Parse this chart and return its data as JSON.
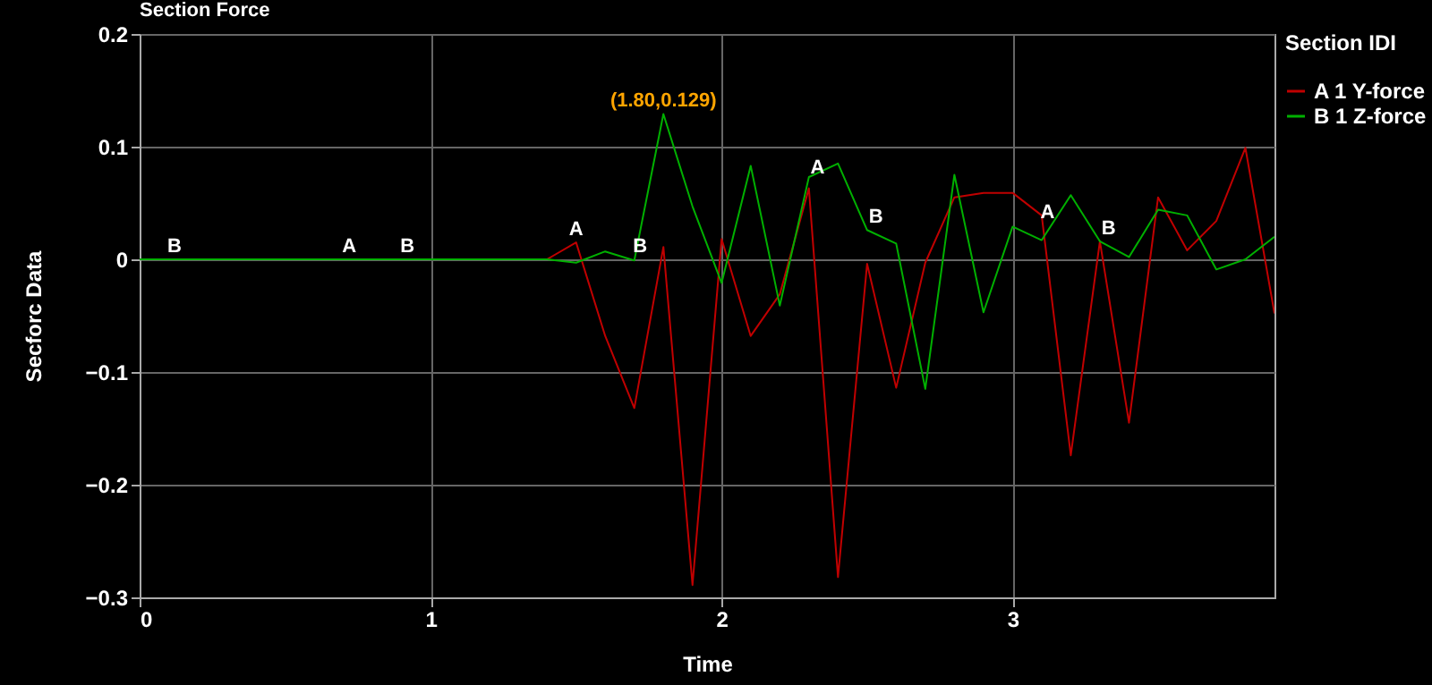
{
  "chart_data": {
    "type": "line",
    "title": "Section Force",
    "xlabel": "Time",
    "ylabel": "Secforc Data",
    "legend_title": "Section IDI",
    "x": [
      0,
      1.4,
      1.5,
      1.6,
      1.7,
      1.8,
      1.9,
      2.0,
      2.1,
      2.2,
      2.3,
      2.4,
      2.5,
      2.6,
      2.7,
      2.8,
      2.9,
      3.0,
      3.1,
      3.2,
      3.3,
      3.4,
      3.5,
      3.6,
      3.7,
      3.8,
      3.9
    ],
    "series": [
      {
        "name": "A  1 Y-force",
        "color": "#c00000",
        "values": [
          0,
          0,
          0.015,
          -0.068,
          -0.132,
          0.011,
          -0.289,
          0.018,
          -0.068,
          -0.031,
          0.063,
          -0.282,
          -0.004,
          -0.114,
          -0.003,
          0.055,
          0.059,
          0.059,
          0.039,
          -0.174,
          0.016,
          -0.145,
          0.055,
          0.008,
          0.034,
          0.099,
          -0.048
        ]
      },
      {
        "name": "B  1 Z-force",
        "color": "#00b000",
        "values": [
          0,
          0,
          -0.003,
          0.007,
          -0.001,
          0.129,
          0.047,
          -0.021,
          0.083,
          -0.041,
          0.073,
          0.085,
          0.026,
          0.014,
          -0.115,
          0.075,
          -0.047,
          0.029,
          0.017,
          0.057,
          0.016,
          0.002,
          0.044,
          0.039,
          -0.009,
          0,
          0.02
        ]
      }
    ],
    "xlim": [
      0,
      3.9
    ],
    "xticks": [
      0,
      1,
      2,
      3
    ],
    "ylim": [
      -0.3,
      0.2
    ],
    "yticks": [
      -0.3,
      -0.2,
      -0.1,
      0,
      0.1,
      0.2
    ],
    "grid": true,
    "legend": "top right",
    "marker": "none",
    "line_style": "solid",
    "annotations": [
      {
        "text": "B",
        "x": 0.12,
        "y": 0
      },
      {
        "text": "A",
        "x": 0.72,
        "y": 0
      },
      {
        "text": "B",
        "x": 0.92,
        "y": 0
      },
      {
        "text": "A",
        "x": 1.5,
        "y": 0.015
      },
      {
        "text": "B",
        "x": 1.72,
        "y": 0
      },
      {
        "text": "A",
        "x": 2.33,
        "y": 0.07
      },
      {
        "text": "B",
        "x": 2.53,
        "y": 0.026
      },
      {
        "text": "A",
        "x": 3.12,
        "y": 0.03
      },
      {
        "text": "B",
        "x": 3.33,
        "y": 0.016
      },
      {
        "text": "(1.80,0.129)",
        "x": 1.8,
        "y": 0.129
      }
    ]
  }
}
